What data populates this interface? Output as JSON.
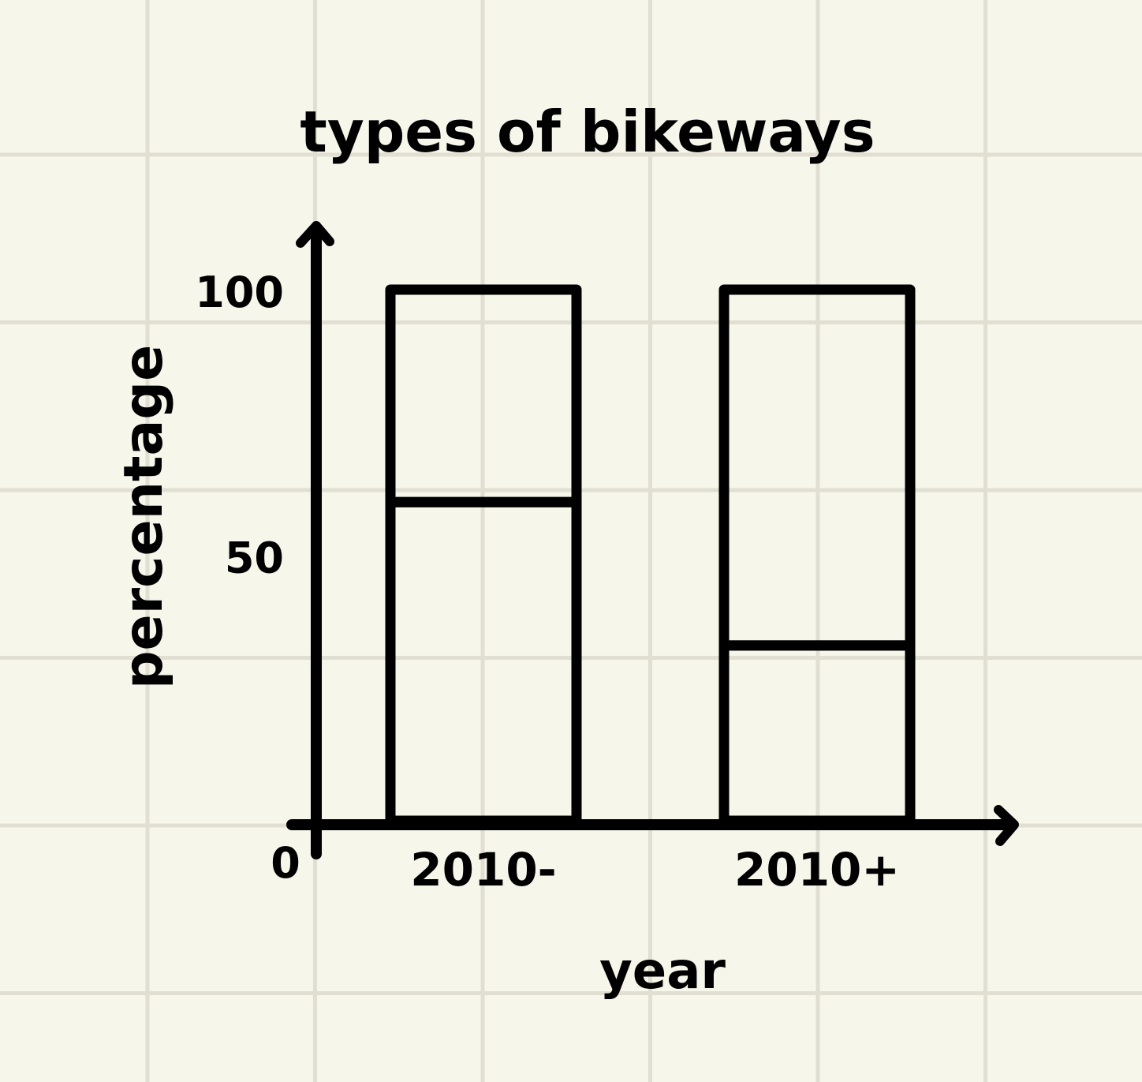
{
  "chart_data": {
    "type": "bar",
    "stacked": true,
    "title": "types of bikeways",
    "xlabel": "year",
    "ylabel": "percentage",
    "categories": [
      "2010-",
      "2010+"
    ],
    "series": [
      {
        "values": [
          60,
          33
        ]
      },
      {
        "values": [
          40,
          67
        ]
      }
    ],
    "ylim": [
      0,
      100
    ],
    "yticks": [
      0,
      50,
      100
    ],
    "grid": true,
    "legend": "none",
    "colors": {
      "background": "#f7f6ea",
      "grid": "#e1dfd1",
      "ink": "#000000"
    }
  }
}
